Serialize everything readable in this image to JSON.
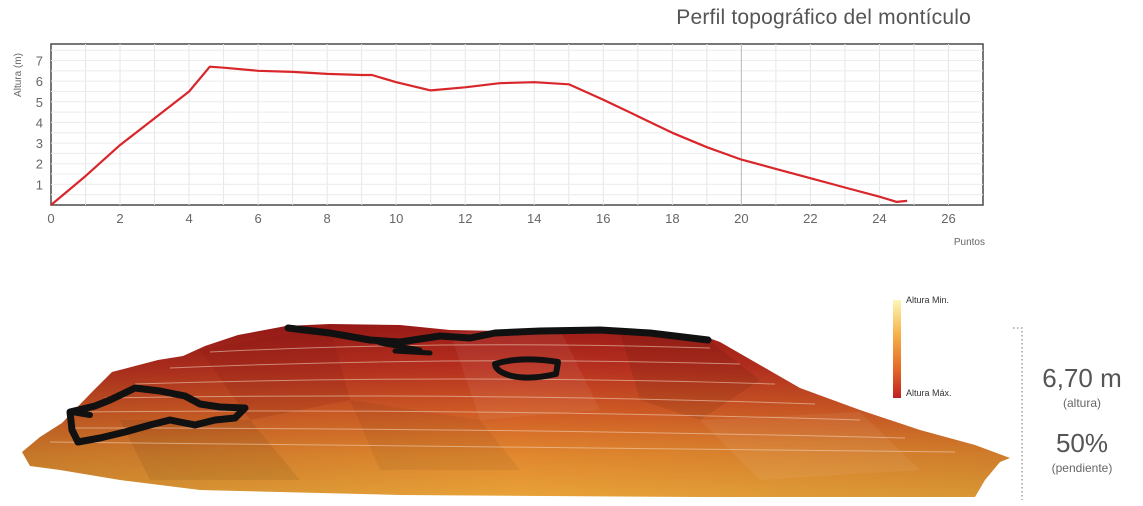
{
  "chart_data": {
    "type": "line",
    "title": "Perfil topográfico del montículo",
    "xlabel": "Puntos",
    "ylabel": "Altura (m)",
    "xlim": [
      0,
      27
    ],
    "ylim": [
      0,
      7.8
    ],
    "xticks": [
      0,
      2,
      4,
      6,
      8,
      10,
      12,
      14,
      16,
      18,
      20,
      22,
      24,
      26
    ],
    "yticks": [
      1,
      2,
      3,
      4,
      5,
      6,
      7
    ],
    "grid": true,
    "series": [
      {
        "color": "#d9262b",
        "x": [
          0,
          1,
          2,
          3,
          4,
          4.6,
          5,
          6,
          7,
          8,
          9,
          9.3,
          10,
          11,
          12,
          13,
          14,
          15,
          16,
          17,
          18,
          19,
          20,
          21,
          22,
          23,
          24,
          24.5,
          24.8
        ],
        "y": [
          0,
          1.4,
          2.9,
          4.2,
          5.5,
          6.7,
          6.65,
          6.5,
          6.45,
          6.35,
          6.3,
          6.3,
          5.95,
          5.55,
          5.7,
          5.9,
          5.95,
          5.85,
          5.1,
          4.3,
          3.5,
          2.8,
          2.2,
          1.75,
          1.3,
          0.85,
          0.4,
          0.15,
          0.2
        ]
      }
    ]
  },
  "legend": {
    "min_label": "Altura Min.",
    "max_label": "Altura Máx.",
    "gradient_colors": [
      "#fcf7b8",
      "#f5b24a",
      "#e46a2a",
      "#c01f23"
    ]
  },
  "stats": {
    "height_value": "6,70 m",
    "height_label": "(altura)",
    "slope_value": "50%",
    "slope_label": "(pendiente)"
  }
}
